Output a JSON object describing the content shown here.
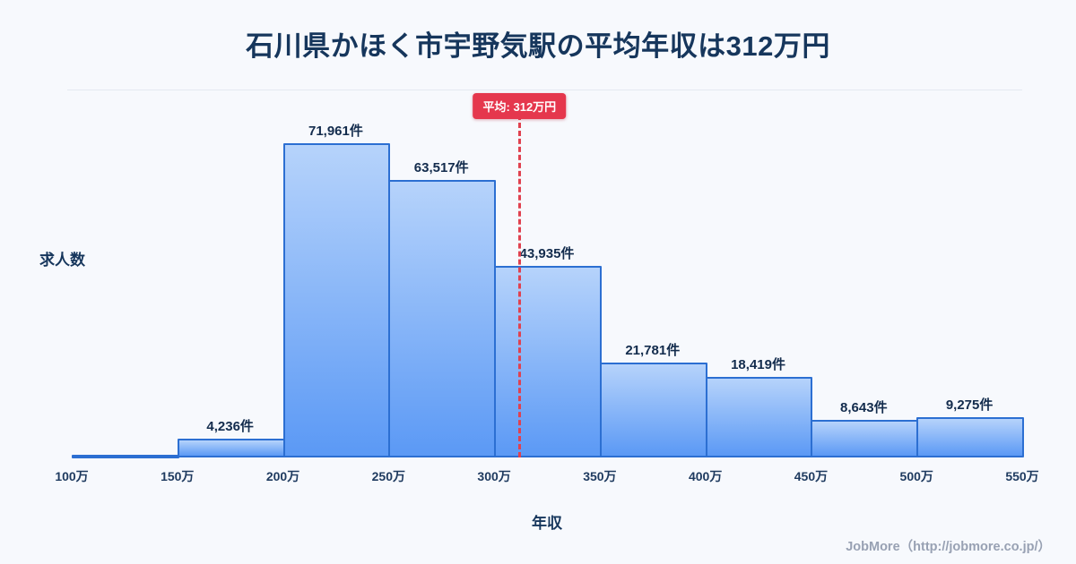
{
  "title": "石川県かほく市宇野気駅の平均年収は312万円",
  "footer": {
    "credit": "JobMore（http://jobmore.co.jp/）"
  },
  "chart_data": {
    "type": "bar",
    "subtype": "histogram",
    "title": "石川県かほく市宇野気駅の平均年収は312万円",
    "xlabel": "年収",
    "ylabel": "求人数",
    "axis_range": [
      100,
      550
    ],
    "x_ticks": [
      "100万",
      "150万",
      "200万",
      "250万",
      "300万",
      "350万",
      "400万",
      "450万",
      "500万",
      "550万"
    ],
    "bins": [
      {
        "range": [
          100,
          150
        ],
        "count": 0,
        "label": ""
      },
      {
        "range": [
          150,
          200
        ],
        "count": 4236,
        "label": "4,236件"
      },
      {
        "range": [
          200,
          250
        ],
        "count": 71961,
        "label": "71,961件"
      },
      {
        "range": [
          250,
          300
        ],
        "count": 63517,
        "label": "63,517件"
      },
      {
        "range": [
          300,
          350
        ],
        "count": 43935,
        "label": "43,935件"
      },
      {
        "range": [
          350,
          400
        ],
        "count": 21781,
        "label": "21,781件"
      },
      {
        "range": [
          400,
          450
        ],
        "count": 18419,
        "label": "18,419件"
      },
      {
        "range": [
          450,
          500
        ],
        "count": 8643,
        "label": "8,643件"
      },
      {
        "range": [
          500,
          550
        ],
        "count": 9275,
        "label": "9,275件"
      }
    ],
    "average_line": {
      "value": 312,
      "label": "平均: 312万円",
      "color": "#e5374d",
      "style": "dashed"
    },
    "grid": "off",
    "legend": "none",
    "colors": {
      "background": "#f7f9fd",
      "bar_fill_top": "#b6d3fb",
      "bar_fill_bottom": "#5b99f5",
      "bar_border": "#2c6fd2",
      "title_text": "#16365c",
      "average_line": "#e5374d"
    }
  }
}
